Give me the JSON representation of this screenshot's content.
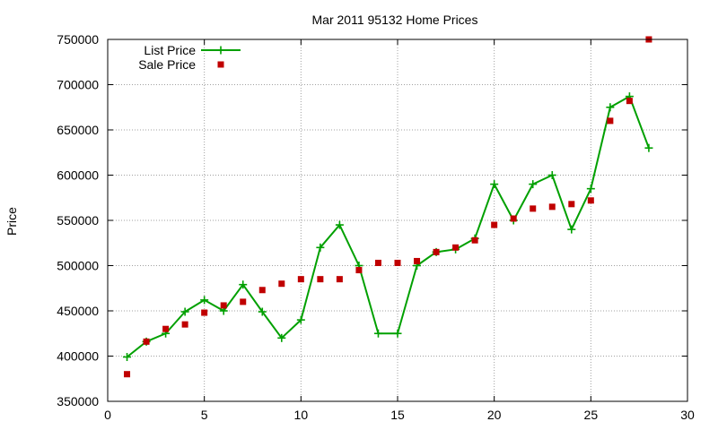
{
  "chart_data": {
    "type": "line",
    "title": "Mar 2011 95132 Home Prices",
    "xlabel": "",
    "ylabel": "Price",
    "xlim": [
      0,
      30
    ],
    "ylim": [
      350000,
      750000
    ],
    "xticks": [
      "0",
      "5",
      "10",
      "15",
      "20",
      "25",
      "30"
    ],
    "yticks": [
      "350000",
      "400000",
      "450000",
      "500000",
      "550000",
      "600000",
      "650000",
      "700000",
      "750000"
    ],
    "grid": true,
    "legend_position": "top-left",
    "series": [
      {
        "name": "List Price",
        "style": "line-with-plus-markers",
        "color": "#00a000",
        "x": [
          1,
          2,
          3,
          4,
          5,
          6,
          7,
          8,
          9,
          10,
          11,
          12,
          13,
          14,
          15,
          16,
          17,
          18,
          19,
          20,
          21,
          22,
          23,
          24,
          25,
          26,
          27,
          28
        ],
        "values": [
          399000,
          416000,
          425000,
          449000,
          462000,
          450000,
          479000,
          449000,
          420000,
          440000,
          520000,
          545000,
          500000,
          425000,
          425000,
          500000,
          515000,
          518000,
          530000,
          590000,
          550000,
          590000,
          600000,
          540000,
          585000,
          675000,
          687000,
          630000
        ]
      },
      {
        "name": "Sale Price",
        "style": "square-markers",
        "color": "#c00000",
        "x": [
          1,
          2,
          3,
          4,
          5,
          6,
          7,
          8,
          9,
          10,
          11,
          12,
          13,
          14,
          15,
          16,
          17,
          18,
          19,
          20,
          21,
          22,
          23,
          24,
          25,
          26,
          27,
          28
        ],
        "values": [
          380000,
          416000,
          430000,
          435000,
          448000,
          456000,
          460000,
          473000,
          480000,
          485000,
          485000,
          485000,
          495000,
          503000,
          503000,
          505000,
          515000,
          520000,
          528000,
          545000,
          552000,
          563000,
          565000,
          568000,
          572000,
          660000,
          682000,
          750000
        ]
      }
    ]
  }
}
